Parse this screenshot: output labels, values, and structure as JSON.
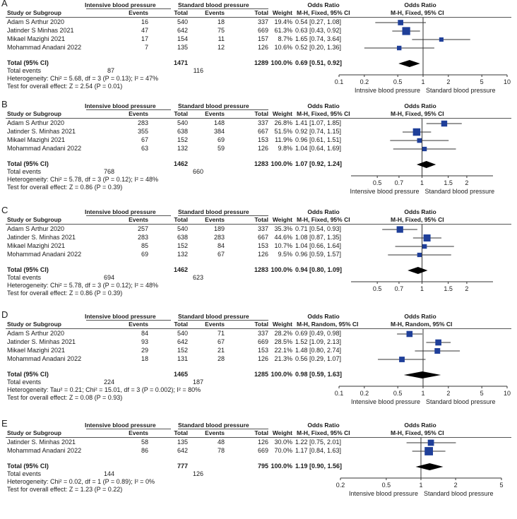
{
  "groupHeaders": {
    "intensive": "Intensive blood pressure",
    "standard": "Standard blood pressure",
    "or": "Odds Ratio",
    "orPlot": "Odds Ratio"
  },
  "colHeaders": {
    "study": "Study or Subgroup",
    "events": "Events",
    "total": "Total",
    "weight": "Weight"
  },
  "totalLabel": "Total (95% CI)",
  "totalEventsLabel": "Total events",
  "colors": {
    "marker": "#1f3f99",
    "diamond": "#000000",
    "line": "#333333"
  },
  "chart_data": [
    {
      "type": "forest",
      "letter": "A",
      "method": "M-H, Fixed, 95% CI",
      "scale": {
        "min": 0.1,
        "max": 10
      },
      "ticks": [
        "0.1",
        "0.2",
        "0.5",
        "1",
        "2",
        "5",
        "10"
      ],
      "favours": {
        "left": "Intnsive blood pressure",
        "right": "Standard blood pressure"
      },
      "studies": [
        {
          "name": "Adam S Arthur 2020",
          "ev1": "16",
          "tot1": "540",
          "ev2": "18",
          "tot2": "337",
          "weight": "19.4%",
          "ci": "0.54 [0.27, 1.08]",
          "or": 0.54,
          "lo": 0.27,
          "hi": 1.08,
          "w": 19.4
        },
        {
          "name": "Jatinder S Minhas 2021",
          "ev1": "47",
          "tot1": "642",
          "ev2": "75",
          "tot2": "669",
          "weight": "61.3%",
          "ci": "0.63 [0.43, 0.92]",
          "or": 0.63,
          "lo": 0.43,
          "hi": 0.92,
          "w": 61.3
        },
        {
          "name": "Mikael Mazighi 2021",
          "ev1": "17",
          "tot1": "154",
          "ev2": "11",
          "tot2": "157",
          "weight": "8.7%",
          "ci": "1.65 [0.74, 3.64]",
          "or": 1.65,
          "lo": 0.74,
          "hi": 3.64,
          "w": 8.7
        },
        {
          "name": "Mohammad Anadani 2022",
          "ev1": "7",
          "tot1": "135",
          "ev2": "12",
          "tot2": "126",
          "weight": "10.6%",
          "ci": "0.52 [0.20, 1.36]",
          "or": 0.52,
          "lo": 0.2,
          "hi": 1.36,
          "w": 10.6
        }
      ],
      "total": {
        "tot1": "1471",
        "tot2": "1289",
        "weight": "100.0%",
        "ci": "0.69 [0.51, 0.92]",
        "or": 0.69,
        "lo": 0.51,
        "hi": 0.92
      },
      "totalEvents": {
        "ev1": "87",
        "ev2": "116"
      },
      "heterogeneity": "Heterogeneity: Chi² = 5.68, df = 3 (P = 0.13); I² = 47%",
      "overall": "Test for overall effect: Z = 2.54 (P = 0.01)"
    },
    {
      "type": "forest",
      "letter": "B",
      "method": "M-H, Fixed, 95% CI",
      "scale": {
        "min": 0.333,
        "max": 3
      },
      "ticks": [
        "0.5",
        "0.7",
        "1",
        "1.5",
        "2"
      ],
      "favours": {
        "left": "Intensive blood pressure",
        "right": "Standard blood pressure"
      },
      "studies": [
        {
          "name": "Adam S Arthur 2020",
          "ev1": "283",
          "tot1": "540",
          "ev2": "148",
          "tot2": "337",
          "weight": "26.8%",
          "ci": "1.41 [1.07, 1.85]",
          "or": 1.41,
          "lo": 1.07,
          "hi": 1.85,
          "w": 26.8
        },
        {
          "name": "Jatinder S. Minhas 2021",
          "ev1": "355",
          "tot1": "638",
          "ev2": "384",
          "tot2": "667",
          "weight": "51.5%",
          "ci": "0.92 [0.74, 1.15]",
          "or": 0.92,
          "lo": 0.74,
          "hi": 1.15,
          "w": 51.5
        },
        {
          "name": "Mikael Mazighi 2021",
          "ev1": "67",
          "tot1": "152",
          "ev2": "69",
          "tot2": "153",
          "weight": "11.9%",
          "ci": "0.96 [0.61, 1.51]",
          "or": 0.96,
          "lo": 0.61,
          "hi": 1.51,
          "w": 11.9
        },
        {
          "name": "Mohammad Anadani 2022",
          "ev1": "63",
          "tot1": "132",
          "ev2": "59",
          "tot2": "126",
          "weight": "9.8%",
          "ci": "1.04 [0.64, 1.69]",
          "or": 1.04,
          "lo": 0.64,
          "hi": 1.69,
          "w": 9.8
        }
      ],
      "total": {
        "tot1": "1462",
        "tot2": "1283",
        "weight": "100.0%",
        "ci": "1.07 [0.92, 1.24]",
        "or": 1.07,
        "lo": 0.92,
        "hi": 1.24
      },
      "totalEvents": {
        "ev1": "768",
        "ev2": "660"
      },
      "heterogeneity": "Heterogeneity: Chi² = 5.78, df = 3 (P = 0.12); I² = 48%",
      "overall": "Test for overall effect: Z = 0.86 (P = 0.39)"
    },
    {
      "type": "forest",
      "letter": "C",
      "method": "M-H, Fixed, 95% CI",
      "scale": {
        "min": 0.333,
        "max": 3
      },
      "ticks": [
        "0.5",
        "0.7",
        "1",
        "1.5",
        "2"
      ],
      "favours": {
        "left": "",
        "right": ""
      },
      "studies": [
        {
          "name": "Adam S Arthur 2020",
          "ev1": "257",
          "tot1": "540",
          "ev2": "189",
          "tot2": "337",
          "weight": "35.3%",
          "ci": "0.71 [0.54, 0.93]",
          "or": 0.71,
          "lo": 0.54,
          "hi": 0.93,
          "w": 35.3
        },
        {
          "name": "Jatinder S. Minhas 2021",
          "ev1": "283",
          "tot1": "638",
          "ev2": "283",
          "tot2": "667",
          "weight": "44.6%",
          "ci": "1.08 [0.87, 1.35]",
          "or": 1.08,
          "lo": 0.87,
          "hi": 1.35,
          "w": 44.6
        },
        {
          "name": "Mikael Mazighi 2021",
          "ev1": "85",
          "tot1": "152",
          "ev2": "84",
          "tot2": "153",
          "weight": "10.7%",
          "ci": "1.04 [0.66, 1.64]",
          "or": 1.04,
          "lo": 0.66,
          "hi": 1.64,
          "w": 10.7
        },
        {
          "name": "Mohammad Anadani 2022",
          "ev1": "69",
          "tot1": "132",
          "ev2": "67",
          "tot2": "126",
          "weight": "9.5%",
          "ci": "0.96 [0.59, 1.57]",
          "or": 0.96,
          "lo": 0.59,
          "hi": 1.57,
          "w": 9.5
        }
      ],
      "total": {
        "tot1": "1462",
        "tot2": "1283",
        "weight": "100.0%",
        "ci": "0.94 [0.80, 1.09]",
        "or": 0.94,
        "lo": 0.8,
        "hi": 1.09
      },
      "totalEvents": {
        "ev1": "694",
        "ev2": "623"
      },
      "heterogeneity": "Heterogeneity: Chi² = 5.78, df = 3 (P = 0.12); I² = 48%",
      "overall": "Test for overall effect: Z = 0.86 (P = 0.39)"
    },
    {
      "type": "forest",
      "letter": "D",
      "method": "M-H, Random, 95% CI",
      "scale": {
        "min": 0.1,
        "max": 10
      },
      "ticks": [
        "0.1",
        "0.2",
        "0.5",
        "1",
        "2",
        "5",
        "10"
      ],
      "favours": {
        "left": "Intensive blood pressure",
        "right": "Standard blood pressure"
      },
      "studies": [
        {
          "name": "Adam S Arthur 2020",
          "ev1": "84",
          "tot1": "540",
          "ev2": "71",
          "tot2": "337",
          "weight": "28.2%",
          "ci": "0.69 [0.49, 0.98]",
          "or": 0.69,
          "lo": 0.49,
          "hi": 0.98,
          "w": 28.2
        },
        {
          "name": "Jatinder S. Minhas 2021",
          "ev1": "93",
          "tot1": "642",
          "ev2": "67",
          "tot2": "669",
          "weight": "28.5%",
          "ci": "1.52 [1.09, 2.13]",
          "or": 1.52,
          "lo": 1.09,
          "hi": 2.13,
          "w": 28.5
        },
        {
          "name": "Mikael Mazighi 2021",
          "ev1": "29",
          "tot1": "152",
          "ev2": "21",
          "tot2": "153",
          "weight": "22.1%",
          "ci": "1.48 [0.80, 2.74]",
          "or": 1.48,
          "lo": 0.8,
          "hi": 2.74,
          "w": 22.1
        },
        {
          "name": "Mohammad Anadani 2022",
          "ev1": "18",
          "tot1": "131",
          "ev2": "28",
          "tot2": "126",
          "weight": "21.3%",
          "ci": "0.56 [0.29, 1.07]",
          "or": 0.56,
          "lo": 0.29,
          "hi": 1.07,
          "w": 21.3
        }
      ],
      "total": {
        "tot1": "1465",
        "tot2": "1285",
        "weight": "100.0%",
        "ci": "0.98 [0.59, 1.63]",
        "or": 0.98,
        "lo": 0.59,
        "hi": 1.63
      },
      "totalEvents": {
        "ev1": "224",
        "ev2": "187"
      },
      "heterogeneity": "Heterogeneity: Tau² = 0.21; Chi² = 15.01, df = 3 (P = 0.002); I² = 80%",
      "overall": "Test for overall effect: Z = 0.08 (P = 0.93)"
    },
    {
      "type": "forest",
      "letter": "E",
      "method": "M-H, Fixed, 95% CI",
      "scale": {
        "min": 0.2,
        "max": 5
      },
      "ticks": [
        "0.2",
        "0.5",
        "1",
        "2",
        "5"
      ],
      "favours": {
        "left": "Intensive blood pressure",
        "right": "Standard blood pressure"
      },
      "studies": [
        {
          "name": "Jatinder S. Minhas 2021",
          "ev1": "58",
          "tot1": "135",
          "ev2": "48",
          "tot2": "126",
          "weight": "30.0%",
          "ci": "1.22 [0.75, 2.01]",
          "or": 1.22,
          "lo": 0.75,
          "hi": 2.01,
          "w": 30.0
        },
        {
          "name": "Mohammad Anadani 2022",
          "ev1": "86",
          "tot1": "642",
          "ev2": "78",
          "tot2": "669",
          "weight": "70.0%",
          "ci": "1.17 [0.84, 1.63]",
          "or": 1.17,
          "lo": 0.84,
          "hi": 1.63,
          "w": 70.0
        }
      ],
      "total": {
        "tot1": "777",
        "tot2": "795",
        "weight": "100.0%",
        "ci": "1.19 [0.90, 1.56]",
        "or": 1.19,
        "lo": 0.9,
        "hi": 1.56
      },
      "totalEvents": {
        "ev1": "144",
        "ev2": "126"
      },
      "heterogeneity": "Heterogeneity: Chi² = 0.02, df = 1 (P = 0.89); I² = 0%",
      "overall": "Test for overall effect: Z = 1.23 (P = 0.22)"
    }
  ]
}
